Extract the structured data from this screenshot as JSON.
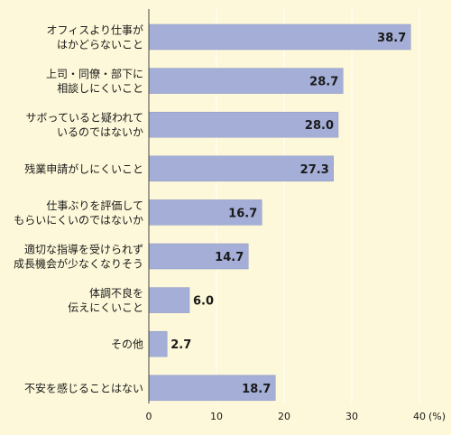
{
  "chart_data": {
    "type": "bar",
    "orientation": "horizontal",
    "categories": [
      [
        "オフィスより仕事が",
        "はかどらないこと"
      ],
      [
        "上司・同僚・部下に",
        "相談しにくいこと"
      ],
      [
        "サボっていると疑われて",
        "いるのではないか"
      ],
      [
        "残業申請がしにくいこと"
      ],
      [
        "仕事ぶりを評価して",
        "もらいにくいのではないか"
      ],
      [
        "適切な指導を受けられず",
        "成長機会が少なくなりそう"
      ],
      [
        "体調不良を",
        "伝えにくいこと"
      ],
      [
        "その他"
      ],
      [
        "不安を感じることはない"
      ]
    ],
    "values": [
      38.7,
      28.7,
      28.0,
      27.3,
      16.7,
      14.7,
      6.0,
      2.7,
      18.7
    ],
    "value_labels": [
      "38.7",
      "28.7",
      "28.0",
      "27.3",
      "16.7",
      "14.7",
      "6.0",
      "2.7",
      "18.7"
    ],
    "xlim": [
      0,
      40
    ],
    "xticks": [
      0,
      10,
      20,
      30,
      40
    ],
    "xtick_labels": [
      "0",
      "10",
      "20",
      "30",
      "40"
    ],
    "xunit": "(%)",
    "grid": true,
    "colors": {
      "background": "#fdf8d9",
      "bar": "#a4aed6",
      "bar_edge": "#8f9ac8",
      "grid": "#ffffff",
      "text": "#1a1a1a"
    }
  }
}
